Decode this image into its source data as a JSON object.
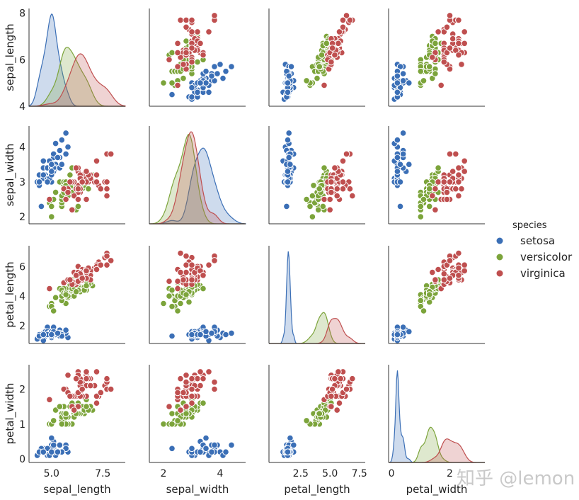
{
  "chart_data": {
    "type": "scatter",
    "variables": [
      "sepal_length",
      "sepal_width",
      "petal_length",
      "petal_width"
    ],
    "diagonal": "kde",
    "hue": "species",
    "grid": false,
    "legend": {
      "title": "species",
      "placement": "right",
      "entries": [
        "setosa",
        "versicolor",
        "virginica"
      ]
    },
    "colors": {
      "setosa": "#3b6fb6",
      "versicolor": "#7ca43b",
      "virginica": "#bf4f4f"
    },
    "axes": {
      "sepal_length": {
        "ylim": [
          4,
          8.2
        ],
        "yticks": [
          4,
          6,
          8
        ],
        "xlim": [
          3.9,
          8.6
        ],
        "xticks": [
          5.0,
          7.5
        ],
        "xticklabels": [
          "5.0",
          "7.5"
        ]
      },
      "sepal_width": {
        "ylim": [
          1.8,
          4.6
        ],
        "yticks": [
          2,
          3,
          4
        ],
        "xlim": [
          1.5,
          4.9
        ],
        "xticks": [
          2,
          4
        ],
        "xticklabels": [
          "2",
          "4"
        ]
      },
      "petal_length": {
        "ylim": [
          0.8,
          7.4
        ],
        "yticks": [
          2,
          4,
          6
        ],
        "xlim": [
          -0.2,
          8.0
        ],
        "xticks": [
          2.5,
          5.0,
          7.5
        ],
        "xticklabels": [
          "2.5",
          "5.0",
          "7.5"
        ]
      },
      "petal_width": {
        "ylim": [
          -0.1,
          2.7
        ],
        "yticks": [
          0,
          1,
          2
        ],
        "xlim": [
          -0.1,
          3.2
        ],
        "xticks": [
          0,
          2
        ],
        "xticklabels": [
          "0",
          "2"
        ]
      }
    },
    "series": [
      {
        "name": "setosa",
        "points": [
          [
            5.1,
            3.5,
            1.4,
            0.2
          ],
          [
            4.9,
            3.0,
            1.4,
            0.2
          ],
          [
            4.7,
            3.2,
            1.3,
            0.2
          ],
          [
            4.6,
            3.1,
            1.5,
            0.2
          ],
          [
            5.0,
            3.6,
            1.4,
            0.2
          ],
          [
            5.4,
            3.9,
            1.7,
            0.4
          ],
          [
            4.6,
            3.4,
            1.4,
            0.3
          ],
          [
            5.0,
            3.4,
            1.5,
            0.2
          ],
          [
            4.4,
            2.9,
            1.4,
            0.2
          ],
          [
            4.9,
            3.1,
            1.5,
            0.1
          ],
          [
            5.4,
            3.7,
            1.5,
            0.2
          ],
          [
            4.8,
            3.4,
            1.6,
            0.2
          ],
          [
            4.8,
            3.0,
            1.4,
            0.1
          ],
          [
            4.3,
            3.0,
            1.1,
            0.1
          ],
          [
            5.8,
            4.0,
            1.2,
            0.2
          ],
          [
            5.7,
            4.4,
            1.5,
            0.4
          ],
          [
            5.4,
            3.9,
            1.3,
            0.4
          ],
          [
            5.1,
            3.5,
            1.4,
            0.3
          ],
          [
            5.7,
            3.8,
            1.7,
            0.3
          ],
          [
            5.1,
            3.8,
            1.5,
            0.3
          ],
          [
            5.4,
            3.4,
            1.7,
            0.2
          ],
          [
            5.1,
            3.7,
            1.5,
            0.4
          ],
          [
            4.6,
            3.6,
            1.0,
            0.2
          ],
          [
            5.1,
            3.3,
            1.7,
            0.5
          ],
          [
            4.8,
            3.4,
            1.9,
            0.2
          ],
          [
            5.0,
            3.0,
            1.6,
            0.2
          ],
          [
            5.0,
            3.4,
            1.6,
            0.4
          ],
          [
            5.2,
            3.5,
            1.5,
            0.2
          ],
          [
            5.2,
            3.4,
            1.4,
            0.2
          ],
          [
            4.7,
            3.2,
            1.6,
            0.2
          ],
          [
            4.8,
            3.1,
            1.6,
            0.2
          ],
          [
            5.4,
            3.4,
            1.5,
            0.4
          ],
          [
            5.2,
            4.1,
            1.5,
            0.1
          ],
          [
            5.5,
            4.2,
            1.4,
            0.2
          ],
          [
            4.9,
            3.1,
            1.5,
            0.2
          ],
          [
            5.0,
            3.2,
            1.2,
            0.2
          ],
          [
            5.5,
            3.5,
            1.3,
            0.2
          ],
          [
            4.9,
            3.6,
            1.4,
            0.1
          ],
          [
            4.4,
            3.0,
            1.3,
            0.2
          ],
          [
            5.1,
            3.4,
            1.5,
            0.2
          ],
          [
            5.0,
            3.5,
            1.3,
            0.3
          ],
          [
            4.5,
            2.3,
            1.3,
            0.3
          ],
          [
            4.4,
            3.2,
            1.3,
            0.2
          ],
          [
            5.0,
            3.5,
            1.6,
            0.6
          ],
          [
            5.1,
            3.8,
            1.9,
            0.4
          ],
          [
            4.8,
            3.0,
            1.4,
            0.3
          ],
          [
            5.1,
            3.8,
            1.6,
            0.2
          ],
          [
            4.6,
            3.2,
            1.4,
            0.2
          ],
          [
            5.3,
            3.7,
            1.5,
            0.2
          ],
          [
            5.0,
            3.3,
            1.4,
            0.2
          ]
        ]
      },
      {
        "name": "versicolor",
        "points": [
          [
            7.0,
            3.2,
            4.7,
            1.4
          ],
          [
            6.4,
            3.2,
            4.5,
            1.5
          ],
          [
            6.9,
            3.1,
            4.9,
            1.5
          ],
          [
            5.5,
            2.3,
            4.0,
            1.3
          ],
          [
            6.5,
            2.8,
            4.6,
            1.5
          ],
          [
            5.7,
            2.8,
            4.5,
            1.3
          ],
          [
            6.3,
            3.3,
            4.7,
            1.6
          ],
          [
            4.9,
            2.4,
            3.3,
            1.0
          ],
          [
            6.6,
            2.9,
            4.6,
            1.3
          ],
          [
            5.2,
            2.7,
            3.9,
            1.4
          ],
          [
            5.0,
            2.0,
            3.5,
            1.0
          ],
          [
            5.9,
            3.0,
            4.2,
            1.5
          ],
          [
            6.0,
            2.2,
            4.0,
            1.0
          ],
          [
            6.1,
            2.9,
            4.7,
            1.4
          ],
          [
            5.6,
            2.9,
            3.6,
            1.3
          ],
          [
            6.7,
            3.1,
            4.4,
            1.4
          ],
          [
            5.6,
            3.0,
            4.5,
            1.5
          ],
          [
            5.8,
            2.7,
            4.1,
            1.0
          ],
          [
            6.2,
            2.2,
            4.5,
            1.5
          ],
          [
            5.6,
            2.5,
            3.9,
            1.1
          ],
          [
            5.9,
            3.2,
            4.8,
            1.8
          ],
          [
            6.1,
            2.8,
            4.0,
            1.3
          ],
          [
            6.3,
            2.5,
            4.9,
            1.5
          ],
          [
            6.1,
            2.8,
            4.7,
            1.2
          ],
          [
            6.4,
            2.9,
            4.3,
            1.3
          ],
          [
            6.6,
            3.0,
            4.4,
            1.4
          ],
          [
            6.8,
            2.8,
            4.8,
            1.4
          ],
          [
            6.7,
            3.0,
            5.0,
            1.7
          ],
          [
            6.0,
            2.9,
            4.5,
            1.5
          ],
          [
            5.7,
            2.6,
            3.5,
            1.0
          ],
          [
            5.5,
            2.4,
            3.8,
            1.1
          ],
          [
            5.5,
            2.4,
            3.7,
            1.0
          ],
          [
            5.8,
            2.7,
            3.9,
            1.2
          ],
          [
            6.0,
            2.7,
            5.1,
            1.6
          ],
          [
            5.4,
            3.0,
            4.5,
            1.5
          ],
          [
            6.0,
            3.4,
            4.5,
            1.6
          ],
          [
            6.7,
            3.1,
            4.7,
            1.5
          ],
          [
            6.3,
            2.3,
            4.4,
            1.3
          ],
          [
            5.6,
            3.0,
            4.1,
            1.3
          ],
          [
            5.5,
            2.5,
            4.0,
            1.3
          ],
          [
            5.5,
            2.6,
            4.4,
            1.2
          ],
          [
            6.1,
            3.0,
            4.6,
            1.4
          ],
          [
            5.8,
            2.6,
            4.0,
            1.2
          ],
          [
            5.0,
            2.3,
            3.3,
            1.0
          ],
          [
            5.6,
            2.7,
            4.2,
            1.3
          ],
          [
            5.7,
            3.0,
            4.2,
            1.2
          ],
          [
            5.7,
            2.9,
            4.2,
            1.3
          ],
          [
            6.2,
            2.9,
            4.3,
            1.3
          ],
          [
            5.1,
            2.5,
            3.0,
            1.1
          ],
          [
            5.7,
            2.8,
            4.1,
            1.3
          ]
        ]
      },
      {
        "name": "virginica",
        "points": [
          [
            6.3,
            3.3,
            6.0,
            2.5
          ],
          [
            5.8,
            2.7,
            5.1,
            1.9
          ],
          [
            7.1,
            3.0,
            5.9,
            2.1
          ],
          [
            6.3,
            2.9,
            5.6,
            1.8
          ],
          [
            6.5,
            3.0,
            5.8,
            2.2
          ],
          [
            7.6,
            3.0,
            6.6,
            2.1
          ],
          [
            4.9,
            2.5,
            4.5,
            1.7
          ],
          [
            7.3,
            2.9,
            6.3,
            1.8
          ],
          [
            6.7,
            2.5,
            5.8,
            1.8
          ],
          [
            7.2,
            3.6,
            6.1,
            2.5
          ],
          [
            6.5,
            3.2,
            5.1,
            2.0
          ],
          [
            6.4,
            2.7,
            5.3,
            1.9
          ],
          [
            6.8,
            3.0,
            5.5,
            2.1
          ],
          [
            5.7,
            2.5,
            5.0,
            2.0
          ],
          [
            5.8,
            2.8,
            5.1,
            2.4
          ],
          [
            6.4,
            3.2,
            5.3,
            2.3
          ],
          [
            6.5,
            3.0,
            5.5,
            1.8
          ],
          [
            7.7,
            3.8,
            6.7,
            2.2
          ],
          [
            7.7,
            2.6,
            6.9,
            2.3
          ],
          [
            6.0,
            2.2,
            5.0,
            1.5
          ],
          [
            6.9,
            3.2,
            5.7,
            2.3
          ],
          [
            5.6,
            2.8,
            4.9,
            2.0
          ],
          [
            7.7,
            2.8,
            6.7,
            2.0
          ],
          [
            6.3,
            2.7,
            4.9,
            1.8
          ],
          [
            6.7,
            3.3,
            5.7,
            2.1
          ],
          [
            7.2,
            3.2,
            6.0,
            1.8
          ],
          [
            6.2,
            2.8,
            4.8,
            1.8
          ],
          [
            6.1,
            3.0,
            4.9,
            1.8
          ],
          [
            6.4,
            2.8,
            5.6,
            2.1
          ],
          [
            7.2,
            3.0,
            5.8,
            1.6
          ],
          [
            7.4,
            2.8,
            6.1,
            1.9
          ],
          [
            7.9,
            3.8,
            6.4,
            2.0
          ],
          [
            6.4,
            2.8,
            5.6,
            2.2
          ],
          [
            6.3,
            2.8,
            5.1,
            1.5
          ],
          [
            6.1,
            2.6,
            5.6,
            1.4
          ],
          [
            7.7,
            3.0,
            6.1,
            2.3
          ],
          [
            6.3,
            3.4,
            5.6,
            2.4
          ],
          [
            6.4,
            3.1,
            5.5,
            1.8
          ],
          [
            6.0,
            3.0,
            4.8,
            1.8
          ],
          [
            6.9,
            3.1,
            5.4,
            2.1
          ],
          [
            6.7,
            3.1,
            5.6,
            2.4
          ],
          [
            6.9,
            3.1,
            5.1,
            2.3
          ],
          [
            5.8,
            2.7,
            5.1,
            1.9
          ],
          [
            6.8,
            3.2,
            5.9,
            2.3
          ],
          [
            6.7,
            3.3,
            5.7,
            2.5
          ],
          [
            6.7,
            3.0,
            5.2,
            2.3
          ],
          [
            6.3,
            2.5,
            5.0,
            1.9
          ],
          [
            6.5,
            3.0,
            5.2,
            2.0
          ],
          [
            6.2,
            3.4,
            5.4,
            2.3
          ],
          [
            5.9,
            3.0,
            5.1,
            1.8
          ]
        ]
      }
    ]
  },
  "watermark": "知乎 @lemon"
}
